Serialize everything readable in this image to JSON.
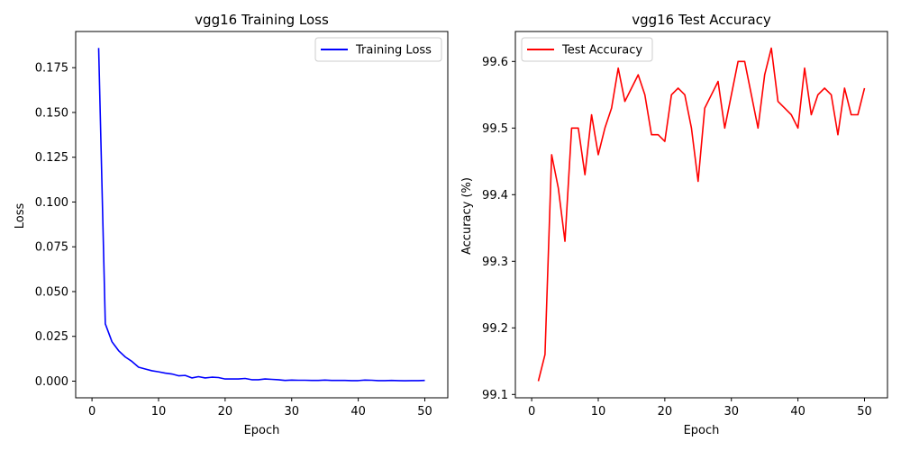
{
  "chart_data": [
    {
      "type": "line",
      "title": "vgg16 Training Loss",
      "xlabel": "Epoch",
      "ylabel": "Loss",
      "xlim": [
        -2.45,
        53.45
      ],
      "ylim": [
        -0.0093,
        0.1952
      ],
      "xticks": [
        0,
        10,
        20,
        30,
        40,
        50
      ],
      "yticks": [
        0.0,
        0.025,
        0.05,
        0.075,
        0.1,
        0.125,
        0.15,
        0.175
      ],
      "xtick_labels": [
        "0",
        "10",
        "20",
        "30",
        "40",
        "50"
      ],
      "ytick_labels": [
        "0.000",
        "0.025",
        "0.050",
        "0.075",
        "0.100",
        "0.125",
        "0.150",
        "0.175"
      ],
      "grid": false,
      "legend_position": "top-right",
      "series": [
        {
          "name": "Training Loss",
          "color": "#0000ff",
          "x": [
            1,
            2,
            3,
            4,
            5,
            6,
            7,
            8,
            9,
            10,
            11,
            12,
            13,
            14,
            15,
            16,
            17,
            18,
            19,
            20,
            21,
            22,
            23,
            24,
            25,
            26,
            27,
            28,
            29,
            30,
            31,
            32,
            33,
            34,
            35,
            36,
            37,
            38,
            39,
            40,
            41,
            42,
            43,
            44,
            45,
            46,
            47,
            48,
            49,
            50
          ],
          "values": [
            0.186,
            0.032,
            0.022,
            0.017,
            0.0135,
            0.011,
            0.0078,
            0.0068,
            0.0058,
            0.0052,
            0.0045,
            0.004,
            0.003,
            0.0032,
            0.0018,
            0.0025,
            0.0018,
            0.0022,
            0.002,
            0.0012,
            0.0012,
            0.0012,
            0.0015,
            0.0008,
            0.0008,
            0.0012,
            0.001,
            0.0008,
            0.0004,
            0.0006,
            0.0005,
            0.0005,
            0.0004,
            0.0004,
            0.0006,
            0.0004,
            0.0004,
            0.0004,
            0.0003,
            0.0003,
            0.0006,
            0.0005,
            0.0003,
            0.0003,
            0.0004,
            0.0003,
            0.0002,
            0.0003,
            0.0003,
            0.0004
          ]
        }
      ]
    },
    {
      "type": "line",
      "title": "vgg16 Test Accuracy",
      "xlabel": "Epoch",
      "ylabel": "Accuracy (%)",
      "xlim": [
        -2.45,
        53.45
      ],
      "ylim": [
        99.095,
        99.645
      ],
      "xticks": [
        0,
        10,
        20,
        30,
        40,
        50
      ],
      "yticks": [
        99.1,
        99.2,
        99.3,
        99.4,
        99.5,
        99.6
      ],
      "xtick_labels": [
        "0",
        "10",
        "20",
        "30",
        "40",
        "50"
      ],
      "ytick_labels": [
        "99.1",
        "99.2",
        "99.3",
        "99.4",
        "99.5",
        "99.6"
      ],
      "grid": false,
      "legend_position": "top-left",
      "series": [
        {
          "name": "Test Accuracy",
          "color": "#ff0000",
          "x": [
            1,
            2,
            3,
            4,
            5,
            6,
            7,
            8,
            9,
            10,
            11,
            12,
            13,
            14,
            15,
            16,
            17,
            18,
            19,
            20,
            21,
            22,
            23,
            24,
            25,
            26,
            27,
            28,
            29,
            30,
            31,
            32,
            33,
            34,
            35,
            36,
            37,
            38,
            39,
            40,
            41,
            42,
            43,
            44,
            45,
            46,
            47,
            48,
            49,
            50
          ],
          "values": [
            99.12,
            99.16,
            99.46,
            99.41,
            99.33,
            99.5,
            99.5,
            99.43,
            99.52,
            99.46,
            99.5,
            99.53,
            99.59,
            99.54,
            99.56,
            99.58,
            99.55,
            99.49,
            99.49,
            99.48,
            99.55,
            99.56,
            99.55,
            99.5,
            99.42,
            99.53,
            99.55,
            99.57,
            99.5,
            99.55,
            99.6,
            99.6,
            99.55,
            99.5,
            99.58,
            99.62,
            99.54,
            99.53,
            99.52,
            99.5,
            99.59,
            99.52,
            99.55,
            99.56,
            99.55,
            99.49,
            99.56,
            99.52,
            99.52,
            99.56
          ]
        }
      ]
    }
  ]
}
